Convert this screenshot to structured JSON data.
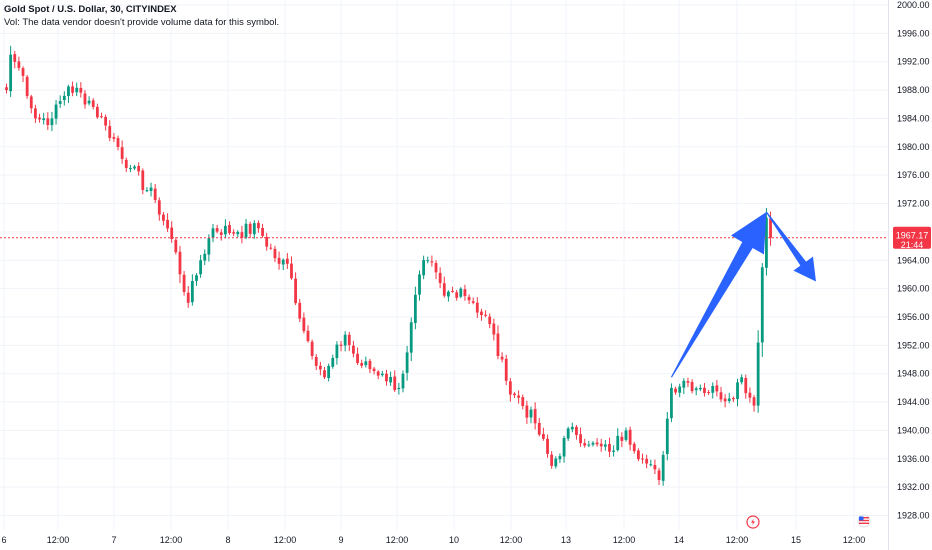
{
  "legend": {
    "title": "Gold Spot / U.S. Dollar, 30, CITYINDEX",
    "vol_note": "Vol: The data vendor doesn't provide volume data for this symbol."
  },
  "price_tag": {
    "price": "1967.17",
    "countdown": "21:44"
  },
  "colors": {
    "up": "#089981",
    "down": "#f23645",
    "grid": "#f0f3fa",
    "arrow": "#2962ff",
    "price_line": "#f23645"
  },
  "icons": [
    "lightning-event-icon",
    "us-flag-icon"
  ],
  "chart_data": {
    "type": "candlestick",
    "title": "Gold Spot / U.S. Dollar, 30, CITYINDEX",
    "ylim": [
      1927,
      2001
    ],
    "y_ticks": [
      2000,
      1996,
      1992,
      1988,
      1984,
      1980,
      1976,
      1972,
      1968,
      1964,
      1960,
      1956,
      1952,
      1948,
      1944,
      1940,
      1936,
      1932,
      1928
    ],
    "y_tick_labels": [
      "2000.00",
      "1996.00",
      "1992.00",
      "1988.00",
      "1984.00",
      "1980.00",
      "1976.00",
      "1972.00",
      "1968.00",
      "1964.00",
      "1960.00",
      "1956.00",
      "1952.00",
      "1948.00",
      "1944.00",
      "1940.00",
      "1936.00",
      "1932.00",
      "1928.00"
    ],
    "x_tick_labels": [
      "6",
      "12:00",
      "7",
      "12:00",
      "8",
      "12:00",
      "9",
      "12:00",
      "10",
      "12:00",
      "13",
      "12:00",
      "14",
      "12:00",
      "15",
      "12:00"
    ],
    "current_price": 1967.17,
    "grid": true,
    "close_path": [
      [
        0,
        1988.0
      ],
      [
        1,
        1993.0
      ],
      [
        4,
        1990.0
      ],
      [
        7,
        1984.0
      ],
      [
        11,
        1984.0
      ],
      [
        15,
        1988.5
      ],
      [
        20,
        1986.5
      ],
      [
        24,
        1983.0
      ],
      [
        30,
        1977.0
      ],
      [
        36,
        1972.5
      ],
      [
        40,
        1967.0
      ],
      [
        44,
        1958.0
      ],
      [
        47,
        1964.0
      ],
      [
        50,
        1968.5
      ],
      [
        56,
        1968.0
      ],
      [
        61,
        1968.5
      ],
      [
        66,
        1963.5
      ],
      [
        68,
        1963.5
      ],
      [
        72,
        1954.0
      ],
      [
        77,
        1947.5
      ],
      [
        82,
        1953.5
      ],
      [
        85,
        1949.5
      ],
      [
        91,
        1948.0
      ],
      [
        95,
        1946.0
      ],
      [
        97,
        1951.0
      ],
      [
        100,
        1962.0
      ],
      [
        102,
        1964.0
      ],
      [
        106,
        1959.0
      ],
      [
        110,
        1960.0
      ],
      [
        113,
        1958.0
      ],
      [
        117,
        1955.0
      ],
      [
        121,
        1947.0
      ],
      [
        128,
        1941.0
      ],
      [
        132,
        1935.0
      ],
      [
        137,
        1940.5
      ],
      [
        141,
        1938.0
      ],
      [
        146,
        1937.0
      ],
      [
        150,
        1940.0
      ],
      [
        154,
        1936.0
      ],
      [
        158,
        1933.0
      ],
      [
        161,
        1946.0
      ],
      [
        164,
        1947.0
      ],
      [
        168,
        1946.0
      ],
      [
        172,
        1945.5
      ],
      [
        175,
        1944.5
      ],
      [
        178,
        1947.5
      ],
      [
        181,
        1943.5
      ],
      [
        183,
        1963.0
      ],
      [
        184,
        1970.0
      ],
      [
        185,
        1967.17
      ]
    ],
    "annotations": [
      {
        "type": "arrow",
        "direction": "up",
        "from": [
          161,
          1947.5
        ],
        "to": [
          184,
          1970.8
        ]
      },
      {
        "type": "arrow",
        "direction": "down",
        "from": [
          184,
          1970.8
        ],
        "to": [
          196,
          1961.0
        ]
      }
    ]
  }
}
